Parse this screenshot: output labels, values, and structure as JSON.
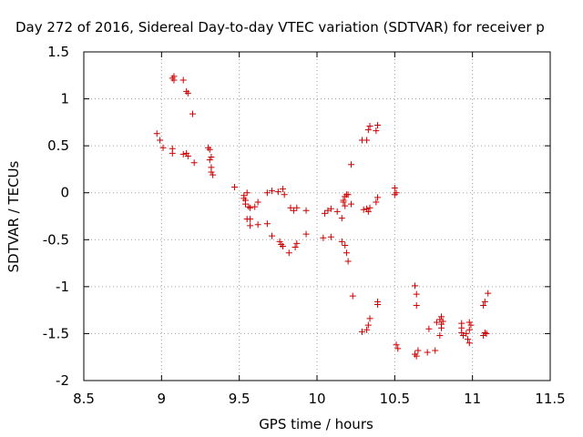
{
  "chart_data": {
    "type": "scatter",
    "title": "Day 272 of 2016, Sidereal Day-to-day VTEC variation (SDTVAR) for receiver p",
    "xlabel": "GPS time / hours",
    "ylabel": "SDTVAR / TECUs",
    "xlim": [
      8.5,
      11.5
    ],
    "ylim": [
      -2,
      1.5
    ],
    "xticks": [
      8.5,
      9,
      9.5,
      10,
      10.5,
      11,
      11.5
    ],
    "yticks": [
      -2,
      -1.5,
      -1,
      -0.5,
      0,
      0.5,
      1,
      1.5
    ],
    "xtick_labels": [
      "8.5",
      "9",
      "9.5",
      "10",
      "10.5",
      "11",
      "11.5"
    ],
    "ytick_labels": [
      "-2",
      "-1.5",
      "-1",
      "-0.5",
      "0",
      "0.5",
      "1",
      "1.5"
    ],
    "grid": true,
    "marker": "plus",
    "marker_color": "#cc0000",
    "series": [
      {
        "points": [
          [
            8.97,
            0.63
          ],
          [
            8.99,
            0.56
          ],
          [
            9.01,
            0.48
          ],
          [
            9.07,
            0.47
          ],
          [
            9.07,
            0.42
          ],
          [
            9.07,
            1.22
          ],
          [
            9.08,
            1.24
          ],
          [
            9.08,
            1.2
          ],
          [
            9.14,
            1.2
          ],
          [
            9.16,
            1.08
          ],
          [
            9.17,
            1.06
          ],
          [
            9.14,
            0.41
          ],
          [
            9.16,
            0.42
          ],
          [
            9.17,
            0.39
          ],
          [
            9.2,
            0.84
          ],
          [
            9.21,
            0.32
          ],
          [
            9.3,
            0.48
          ],
          [
            9.31,
            0.46
          ],
          [
            9.31,
            0.35
          ],
          [
            9.32,
            0.38
          ],
          [
            9.32,
            0.27
          ],
          [
            9.32,
            0.22
          ],
          [
            9.33,
            0.19
          ],
          [
            9.47,
            0.06
          ],
          [
            9.53,
            -0.03
          ],
          [
            9.53,
            -0.06
          ],
          [
            9.54,
            -0.08
          ],
          [
            9.54,
            -0.12
          ],
          [
            9.55,
            0.0
          ],
          [
            9.55,
            -0.28
          ],
          [
            9.56,
            -0.15
          ],
          [
            9.57,
            -0.16
          ],
          [
            9.57,
            -0.28
          ],
          [
            9.57,
            -0.35
          ],
          [
            9.6,
            -0.15
          ],
          [
            9.62,
            -0.1
          ],
          [
            9.62,
            -0.34
          ],
          [
            9.68,
            -0.33
          ],
          [
            9.68,
            0.0
          ],
          [
            9.71,
            0.02
          ],
          [
            9.71,
            -0.46
          ],
          [
            9.75,
            0.01
          ],
          [
            9.76,
            -0.52
          ],
          [
            9.77,
            -0.55
          ],
          [
            9.78,
            -0.57
          ],
          [
            9.78,
            0.04
          ],
          [
            9.79,
            -0.02
          ],
          [
            9.82,
            -0.64
          ],
          [
            9.83,
            -0.16
          ],
          [
            9.85,
            -0.19
          ],
          [
            9.86,
            -0.58
          ],
          [
            9.87,
            -0.16
          ],
          [
            9.87,
            -0.54
          ],
          [
            9.93,
            -0.19
          ],
          [
            9.93,
            -0.44
          ],
          [
            10.04,
            -0.48
          ],
          [
            10.05,
            -0.22
          ],
          [
            10.07,
            -0.19
          ],
          [
            10.09,
            -0.17
          ],
          [
            10.09,
            -0.47
          ],
          [
            10.13,
            -0.2
          ],
          [
            10.16,
            -0.52
          ],
          [
            10.16,
            -0.27
          ],
          [
            10.17,
            -0.1
          ],
          [
            10.17,
            -0.08
          ],
          [
            10.18,
            -0.56
          ],
          [
            10.18,
            -0.14
          ],
          [
            10.18,
            -0.04
          ],
          [
            10.19,
            -0.64
          ],
          [
            10.19,
            -0.02
          ],
          [
            10.2,
            -0.73
          ],
          [
            10.2,
            -0.02
          ],
          [
            10.22,
            -0.12
          ],
          [
            10.22,
            0.3
          ],
          [
            10.23,
            -1.1
          ],
          [
            10.29,
            -1.48
          ],
          [
            10.29,
            0.56
          ],
          [
            10.3,
            -0.18
          ],
          [
            10.32,
            -1.46
          ],
          [
            10.32,
            -0.17
          ],
          [
            10.32,
            0.56
          ],
          [
            10.33,
            -1.41
          ],
          [
            10.33,
            -0.2
          ],
          [
            10.33,
            0.67
          ],
          [
            10.34,
            0.71
          ],
          [
            10.34,
            -1.34
          ],
          [
            10.34,
            -0.16
          ],
          [
            10.38,
            -0.1
          ],
          [
            10.38,
            0.66
          ],
          [
            10.39,
            0.72
          ],
          [
            10.39,
            -0.05
          ],
          [
            10.39,
            -1.16
          ],
          [
            10.39,
            -1.19
          ],
          [
            10.5,
            0.05
          ],
          [
            10.5,
            -0.02
          ],
          [
            10.51,
            0.0
          ],
          [
            10.51,
            -1.62
          ],
          [
            10.52,
            -1.66
          ],
          [
            10.63,
            -1.72
          ],
          [
            10.63,
            -0.99
          ],
          [
            10.64,
            -1.74
          ],
          [
            10.64,
            -1.08
          ],
          [
            10.64,
            -1.2
          ],
          [
            10.65,
            -1.68
          ],
          [
            10.71,
            -1.7
          ],
          [
            10.72,
            -1.45
          ],
          [
            10.76,
            -1.68
          ],
          [
            10.77,
            -1.38
          ],
          [
            10.79,
            -1.52
          ],
          [
            10.79,
            -1.35
          ],
          [
            10.8,
            -1.4
          ],
          [
            10.8,
            -1.44
          ],
          [
            10.8,
            -1.32
          ],
          [
            10.81,
            -1.37
          ],
          [
            10.93,
            -1.39
          ],
          [
            10.93,
            -1.44
          ],
          [
            10.93,
            -1.49
          ],
          [
            10.94,
            -1.52
          ],
          [
            10.96,
            -1.5
          ],
          [
            10.97,
            -1.56
          ],
          [
            10.98,
            -1.46
          ],
          [
            10.98,
            -1.38
          ],
          [
            10.98,
            -1.6
          ],
          [
            10.99,
            -1.41
          ],
          [
            11.07,
            -1.2
          ],
          [
            11.07,
            -1.52
          ],
          [
            11.08,
            -1.16
          ],
          [
            11.08,
            -1.49
          ],
          [
            11.09,
            -1.5
          ],
          [
            11.1,
            -1.07
          ]
        ]
      }
    ]
  }
}
